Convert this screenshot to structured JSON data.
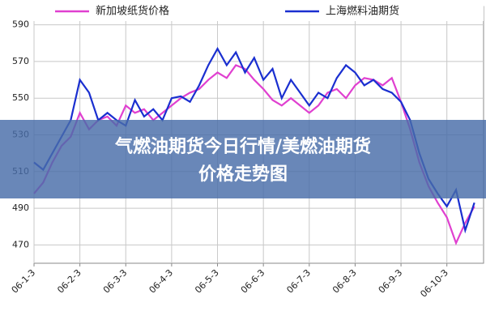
{
  "chart_data": {
    "type": "line",
    "overlay_title": [
      "气燃油期货今日行情/美燃油期货",
      "价格走势图"
    ],
    "x": [
      0,
      0.2,
      0.4,
      0.6,
      0.8,
      1,
      1.2,
      1.4,
      1.6,
      1.8,
      2,
      2.2,
      2.4,
      2.6,
      2.8,
      3,
      3.2,
      3.4,
      3.6,
      3.8,
      4,
      4.2,
      4.4,
      4.6,
      4.8,
      5,
      5.2,
      5.4,
      5.6,
      5.8,
      6,
      6.2,
      6.4,
      6.6,
      6.8,
      7,
      7.2,
      7.4,
      7.6,
      7.8,
      8,
      8.2,
      8.4,
      8.6,
      8.8,
      9,
      9.2,
      9.4,
      9.6
    ],
    "series": [
      {
        "name": "新加坡纸货价格",
        "color": "#e040d0",
        "values": [
          498,
          504,
          515,
          524,
          529,
          542,
          533,
          538,
          540,
          535,
          546,
          542,
          544,
          538,
          542,
          546,
          550,
          553,
          555,
          560,
          564,
          561,
          568,
          566,
          560,
          555,
          549,
          546,
          550,
          546,
          542,
          546,
          553,
          555,
          550,
          557,
          561,
          560,
          557,
          561,
          548,
          533,
          515,
          502,
          493,
          485,
          471,
          482,
          491
        ]
      },
      {
        "name": "上海燃料油期货",
        "color": "#1a2fd0",
        "values": [
          515,
          511,
          520,
          529,
          538,
          560,
          553,
          538,
          542,
          538,
          535,
          549,
          540,
          544,
          538,
          550,
          551,
          548,
          557,
          568,
          577,
          568,
          575,
          564,
          572,
          560,
          566,
          550,
          560,
          553,
          546,
          553,
          550,
          561,
          568,
          564,
          557,
          560,
          555,
          553,
          548,
          538,
          520,
          506,
          498,
          491,
          500,
          478,
          493
        ]
      }
    ],
    "xlim": [
      0,
      9.8
    ],
    "xticks": [
      {
        "value": 0,
        "label": "06-1-3"
      },
      {
        "value": 1,
        "label": "06-2-3"
      },
      {
        "value": 2,
        "label": "06-3-3"
      },
      {
        "value": 3,
        "label": "06-4-3"
      },
      {
        "value": 4,
        "label": "06-5-3"
      },
      {
        "value": 5,
        "label": "06-6-3"
      },
      {
        "value": 6,
        "label": "06-7-3"
      },
      {
        "value": 7,
        "label": "06-8-3"
      },
      {
        "value": 8,
        "label": "06-9-3"
      },
      {
        "value": 9,
        "label": "06-10-3"
      }
    ],
    "ylim": [
      460,
      600
    ],
    "yticks": [
      470,
      490,
      510,
      530,
      550,
      570,
      590
    ],
    "grid": true
  }
}
